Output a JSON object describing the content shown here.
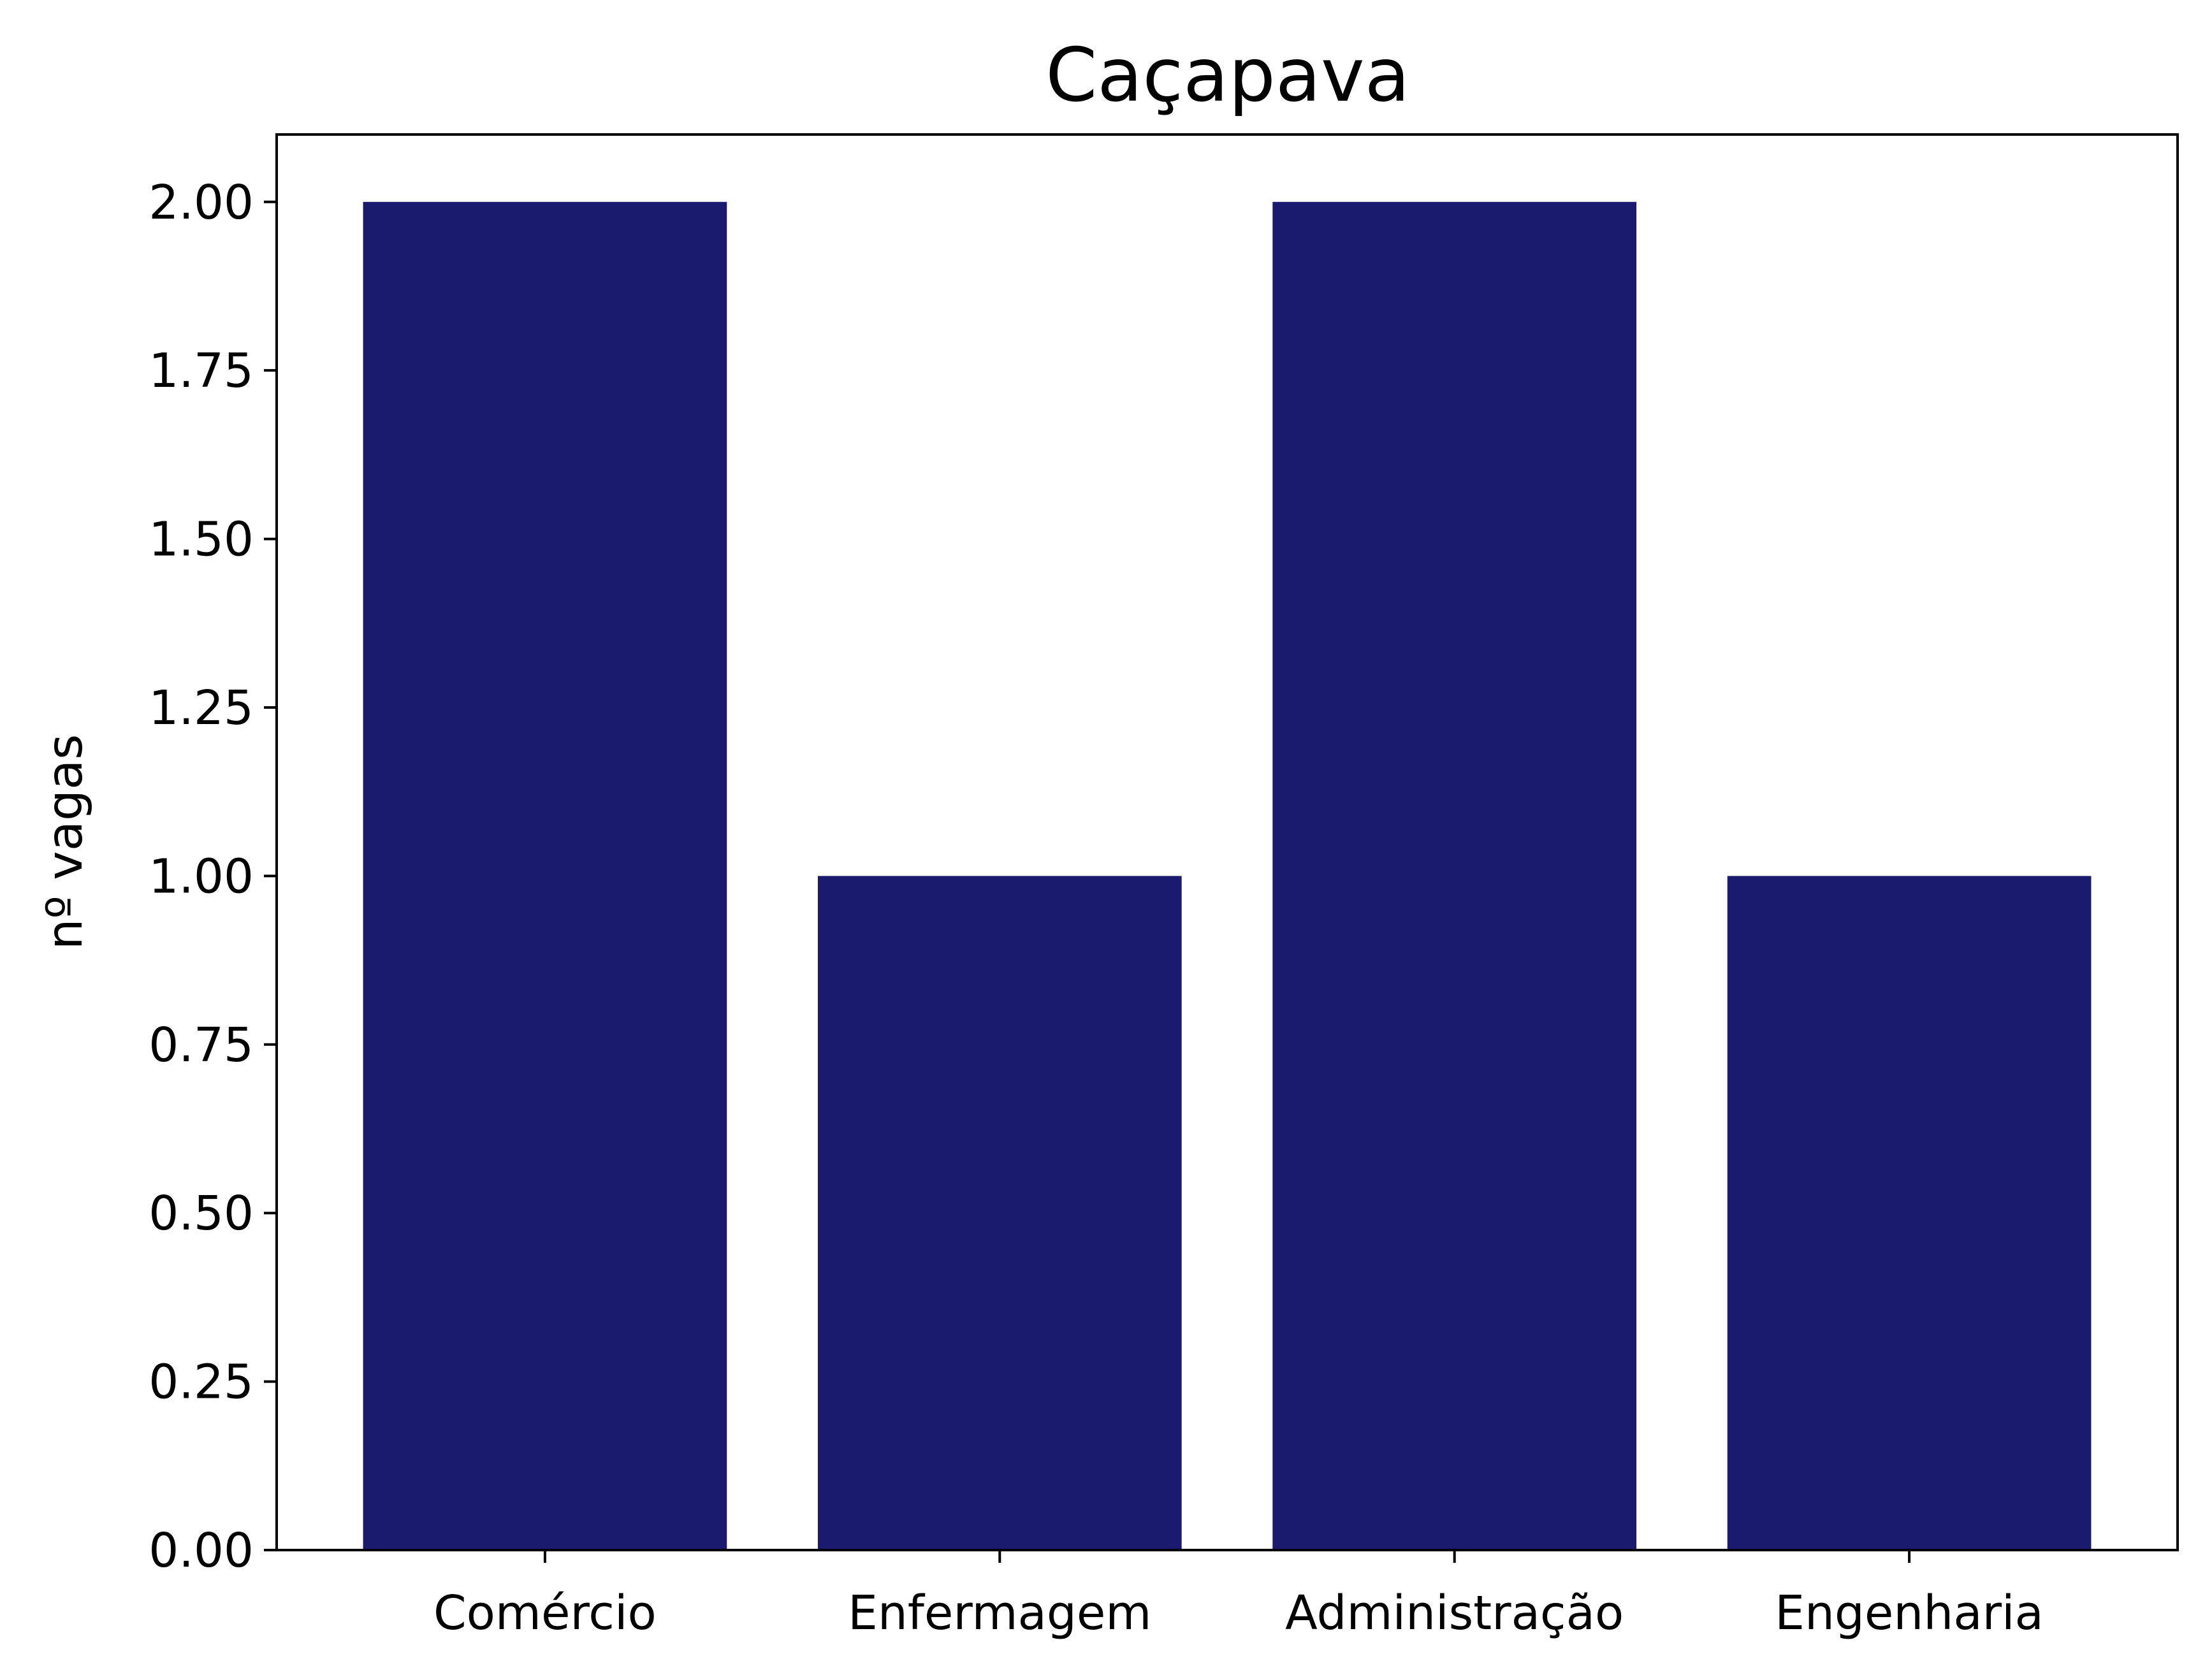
{
  "chart_data": {
    "type": "bar",
    "title": "Caçapava",
    "xlabel": "",
    "ylabel": "nº vagas",
    "categories": [
      "Comércio",
      "Enfermagem",
      "Administração",
      "Engenharia"
    ],
    "values": [
      2,
      1,
      2,
      1
    ],
    "ylim": [
      0,
      2.1
    ],
    "yticks": [
      "0.00",
      "0.25",
      "0.50",
      "0.75",
      "1.00",
      "1.25",
      "1.50",
      "1.75",
      "2.00"
    ],
    "bar_color": "#1a1a6e",
    "grid": false,
    "legend": "none"
  }
}
